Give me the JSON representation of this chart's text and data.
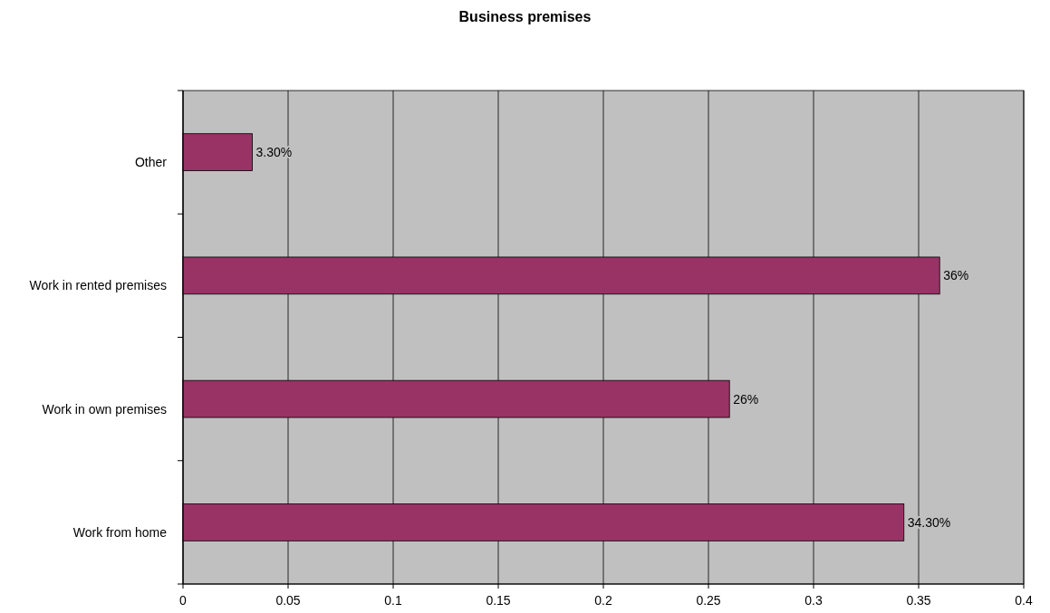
{
  "chart_data": {
    "type": "bar",
    "title": "Business premises",
    "orientation": "horizontal",
    "categories": [
      "Other",
      "Work in rented premises",
      "Work in own premises",
      "Work from home"
    ],
    "values": [
      0.033,
      0.36,
      0.26,
      0.343
    ],
    "value_labels": [
      "3.30%",
      "36%",
      "26%",
      "34.30%"
    ],
    "color": "#993366",
    "xlim": [
      0,
      0.4
    ],
    "xticks": [
      0,
      0.05,
      0.1,
      0.15,
      0.2,
      0.25,
      0.3,
      0.35,
      0.4
    ],
    "grid": "x"
  }
}
